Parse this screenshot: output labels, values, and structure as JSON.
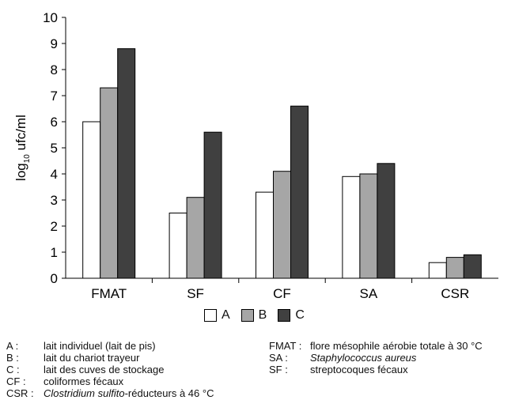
{
  "chart_data": {
    "type": "bar",
    "title": "",
    "xlabel": "",
    "ylabel_prefix": "log",
    "ylabel_sub": "10",
    "ylabel_suffix": " ufc/ml",
    "ylim": [
      0,
      10
    ],
    "yticks": [
      "0",
      "1",
      "2",
      "3",
      "4",
      "5",
      "6",
      "7",
      "8",
      "9",
      "10"
    ],
    "categories": [
      "FMAT",
      "SF",
      "CF",
      "SA",
      "CSR"
    ],
    "series": [
      {
        "name": "A",
        "color": "#ffffff",
        "values": [
          6.0,
          2.5,
          3.3,
          3.9,
          0.6
        ]
      },
      {
        "name": "B",
        "color": "#a6a6a6",
        "values": [
          7.3,
          3.1,
          4.1,
          4.0,
          0.8
        ]
      },
      {
        "name": "C",
        "color": "#404040",
        "values": [
          8.8,
          5.6,
          6.6,
          4.4,
          0.9
        ]
      }
    ],
    "legend_position": "bottom",
    "grid": false
  },
  "notes_left": [
    {
      "abbr": "A :",
      "text": "lait individuel (lait de pis)"
    },
    {
      "abbr": "B :",
      "text": "lait du chariot trayeur"
    },
    {
      "abbr": "C :",
      "text": "lait des cuves de stockage"
    },
    {
      "abbr": "CF :",
      "text": "coliformes fécaux"
    },
    {
      "abbr": "CSR :",
      "text_italic": "Clostridium sulfito",
      "text": "-réducteurs à 46 °C"
    }
  ],
  "notes_right": [
    {
      "abbr": "FMAT :",
      "text": "flore mésophile aérobie totale à 30 °C"
    },
    {
      "abbr": "SA :",
      "text_italic": "Staphylococcus aureus",
      "text": ""
    },
    {
      "abbr": "SF :",
      "text": "streptocoques fécaux"
    }
  ]
}
